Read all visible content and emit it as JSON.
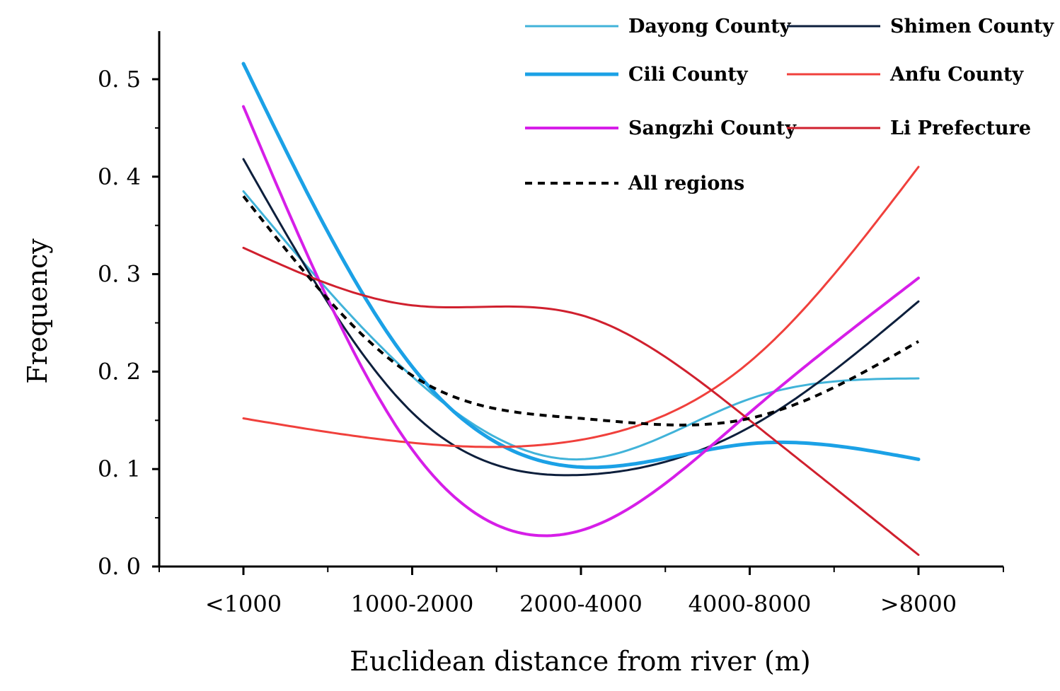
{
  "chart_data": {
    "type": "line",
    "xlabel": "Euclidean distance from river (m)",
    "ylabel": "Frequency",
    "categories": [
      "<1000",
      "1000-2000",
      "2000-4000",
      "4000-8000",
      ">8000"
    ],
    "y_ticks": [
      "0.0",
      "0.1",
      "0.2",
      "0.3",
      "0.4",
      "0.5"
    ],
    "ylim": [
      0,
      0.55
    ],
    "grid": false,
    "legend_position": "top-right",
    "series": [
      {
        "name": "Dayong County",
        "color": "#41b3d9",
        "dashed": false,
        "width": 3,
        "values": [
          0.385,
          0.195,
          0.11,
          0.172,
          0.193
        ]
      },
      {
        "name": "Shimen County",
        "color": "#0d1f3c",
        "dashed": false,
        "width": 3,
        "values": [
          0.418,
          0.158,
          0.094,
          0.143,
          0.272
        ]
      },
      {
        "name": "Cili County",
        "color": "#1ba1e6",
        "dashed": false,
        "width": 5,
        "values": [
          0.516,
          0.205,
          0.102,
          0.126,
          0.11
        ]
      },
      {
        "name": "Anfu County",
        "color": "#f0403c",
        "dashed": false,
        "width": 3,
        "values": [
          0.152,
          0.127,
          0.13,
          0.21,
          0.41
        ]
      },
      {
        "name": "Sangzhi County",
        "color": "#d61ee8",
        "dashed": false,
        "width": 4,
        "values": [
          0.472,
          0.12,
          0.037,
          0.158,
          0.296
        ]
      },
      {
        "name": "Li Prefecture",
        "color": "#d0202e",
        "dashed": false,
        "width": 3,
        "values": [
          0.327,
          0.268,
          0.258,
          0.15,
          0.012
        ]
      },
      {
        "name": "All regions",
        "color": "#000000",
        "dashed": true,
        "width": 4,
        "values": [
          0.38,
          0.196,
          0.152,
          0.152,
          0.231
        ]
      }
    ]
  }
}
